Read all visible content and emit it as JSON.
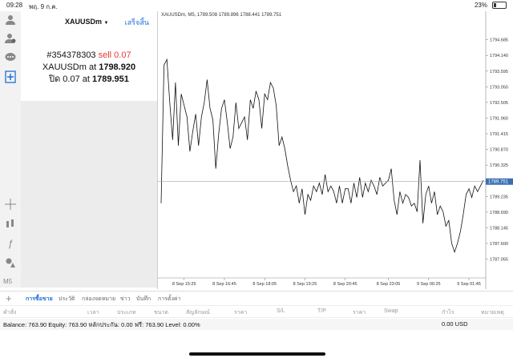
{
  "status": {
    "time": "09:28",
    "date": "พฤ. 9 ก.ค.",
    "battery": "23%"
  },
  "panel": {
    "symbol": "XAUUSDm",
    "done": "เสร็จสิ้น",
    "order_id": "#354378303",
    "order_type": "sell 0.07",
    "open_symbol": "XAUUSDm at",
    "open_price": "1798.920",
    "close_text": "ปิด 0.07 at",
    "close_price": "1789.951"
  },
  "toolbar": {
    "timeframe": "M5"
  },
  "chart_data": {
    "type": "line",
    "title": "XAUUSDm, M5, 1789.508 1789.896 1788.441 1789.751",
    "current_price": "1789.751",
    "ylim": [
      1786.4,
      1795.4
    ],
    "y_ticks": [
      "1794.685",
      "1794.140",
      "1793.595",
      "1793.050",
      "1792.505",
      "1791.960",
      "1791.415",
      "1790.870",
      "1790.325",
      "1789.780",
      "1789.235",
      "1788.690",
      "1788.145",
      "1787.600",
      "1787.055"
    ],
    "x_ticks": [
      "8 Sep 15:25",
      "8 Sep 16:45",
      "8 Sep 18:05",
      "8 Sep 19:25",
      "8 Sep 20:45",
      "8 Sep 23:05",
      "9 Sep 00:25",
      "9 Sep 01:45"
    ],
    "values": [
      1789.0,
      1793.8,
      1794.0,
      1792.5,
      1791.2,
      1793.2,
      1791.0,
      1792.8,
      1792.4,
      1792.0,
      1790.8,
      1791.5,
      1792.1,
      1791.0,
      1792.0,
      1792.5,
      1793.3,
      1792.3,
      1791.9,
      1790.2,
      1791.4,
      1792.3,
      1792.6,
      1791.8,
      1790.9,
      1791.3,
      1792.5,
      1791.6,
      1791.8,
      1792.0,
      1791.2,
      1792.6,
      1792.3,
      1792.9,
      1792.6,
      1791.6,
      1792.8,
      1792.6,
      1793.2,
      1793.0,
      1792.4,
      1791.0,
      1791.3,
      1790.9,
      1790.3,
      1789.8,
      1789.4,
      1789.6,
      1789.0,
      1789.5,
      1788.6,
      1789.3,
      1789.1,
      1789.6,
      1789.4,
      1789.7,
      1789.3,
      1790.0,
      1789.4,
      1789.6,
      1789.4,
      1789.0,
      1789.6,
      1789.0,
      1789.5,
      1789.5,
      1789.0,
      1789.7,
      1789.2,
      1789.9,
      1789.2,
      1789.7,
      1789.4,
      1789.8,
      1789.6,
      1789.3,
      1789.9,
      1789.6,
      1789.7,
      1789.8,
      1790.2,
      1789.1,
      1788.6,
      1789.4,
      1789.0,
      1789.3,
      1789.2,
      1788.9,
      1789.0,
      1788.7,
      1790.5,
      1788.3,
      1789.3,
      1789.6,
      1789.0,
      1789.4,
      1788.6,
      1788.9,
      1788.7,
      1788.2,
      1788.4,
      1787.6,
      1787.3,
      1787.6,
      1788.0,
      1788.6,
      1789.3,
      1789.5,
      1789.2,
      1789.6,
      1789.4,
      1789.6,
      1789.8
    ]
  },
  "tabs": [
    "การซื้อขาย",
    "ประวัติ",
    "กล่องจดหมาย",
    "ข่าว",
    "บันทึก",
    "การตั้งค่า"
  ],
  "columns": [
    "คำสั่ง",
    "เวลา",
    "ประเภท",
    "ขนาด",
    "สัญลักษณ์",
    "ราคา",
    "S/L",
    "T/P",
    "ราคา",
    "Swap",
    "กำไร",
    "หมายเหตุ"
  ],
  "balance": {
    "text": "Balance: 763.90 Equity: 763.90 หลักประกัน: 0.00 ฟรี: 763.90 Level: 0.00%",
    "profit": "0.00  USD"
  },
  "colors": {
    "accent": "#1f6fd6",
    "sell": "#e53935"
  }
}
